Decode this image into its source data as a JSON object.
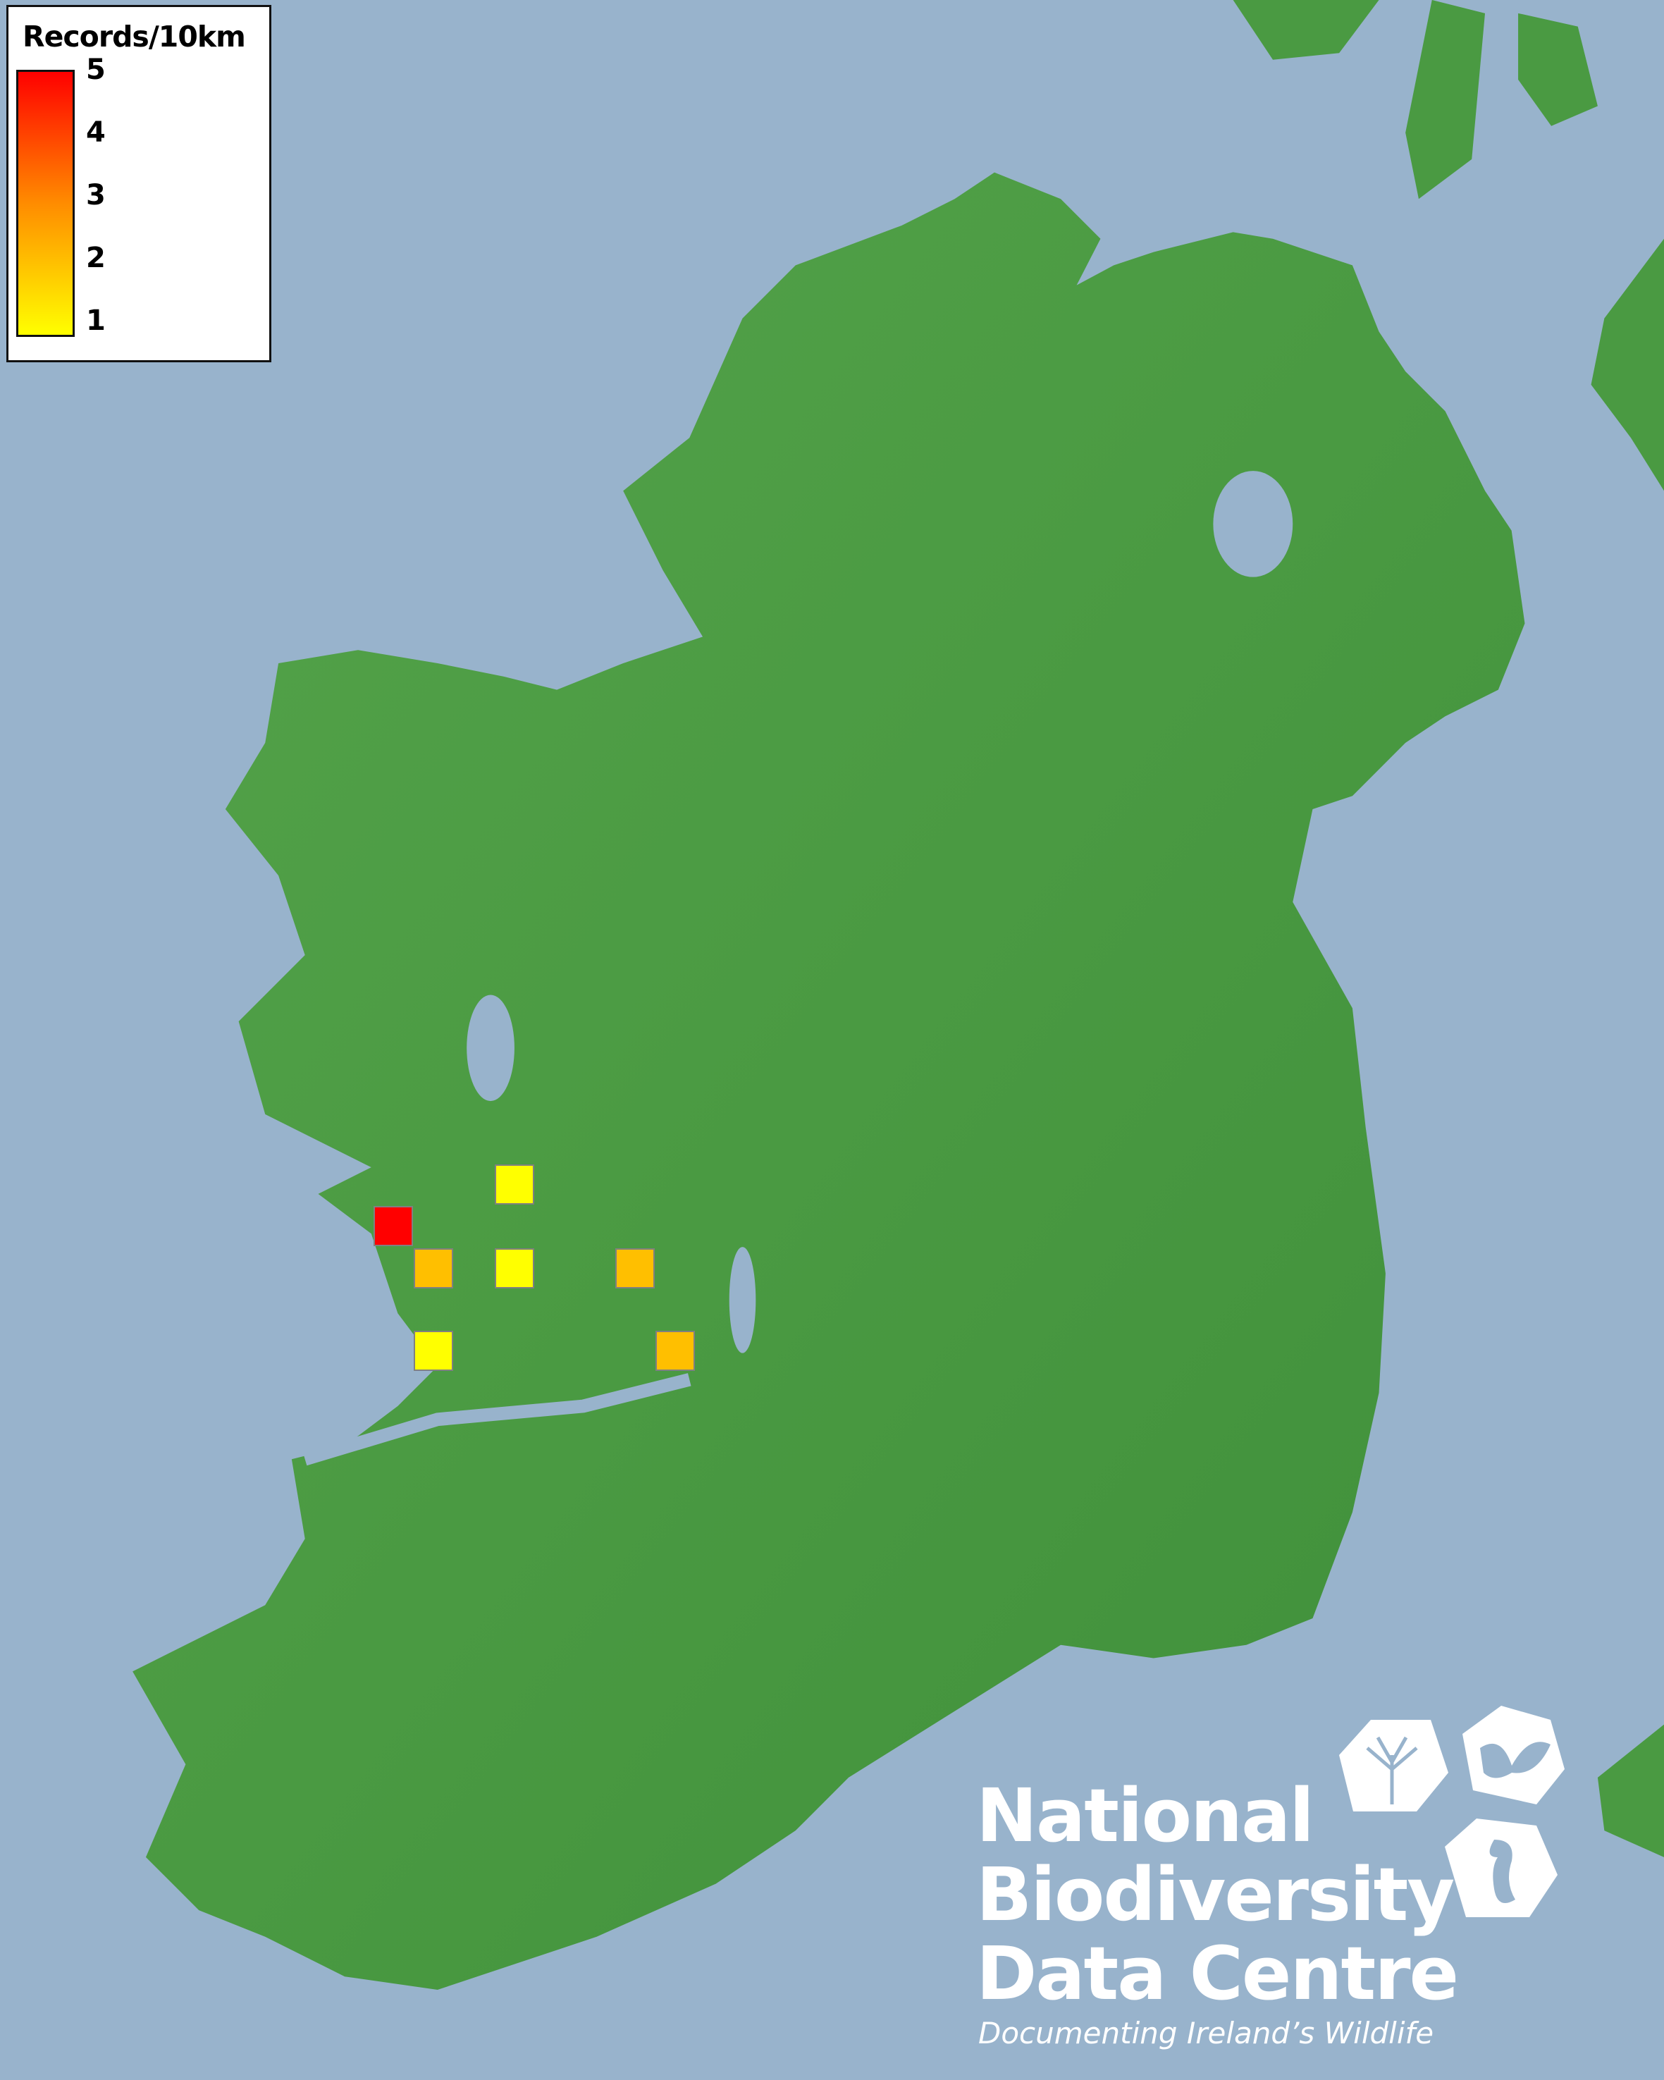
{
  "legend": {
    "title": "Records/10km",
    "ticks": [
      "5",
      "4",
      "3",
      "2",
      "1"
    ],
    "range": [
      1,
      5
    ],
    "colors": {
      "min": "#FFFF00",
      "mid": "#FF8C00",
      "max": "#FF0000"
    }
  },
  "records": [
    {
      "value": 1,
      "color": "#FFFF00"
    },
    {
      "value": 5,
      "color": "#FF0000"
    },
    {
      "value": 2,
      "color": "#FFBF00"
    },
    {
      "value": 1,
      "color": "#FFFF00"
    },
    {
      "value": 2,
      "color": "#FFBF00"
    },
    {
      "value": 1,
      "color": "#FFFF00"
    },
    {
      "value": 2,
      "color": "#FFBF00"
    }
  ],
  "colors": {
    "sea": "#98B3CC",
    "land": "#4a9a42"
  },
  "logo": {
    "line1": "National",
    "line2": "Biodiversity",
    "line3": "Data Centre",
    "tagline": "Documenting Ireland’s Wildlife",
    "icons": [
      "tree-icon",
      "butterfly-icon",
      "seahorse-icon"
    ]
  }
}
